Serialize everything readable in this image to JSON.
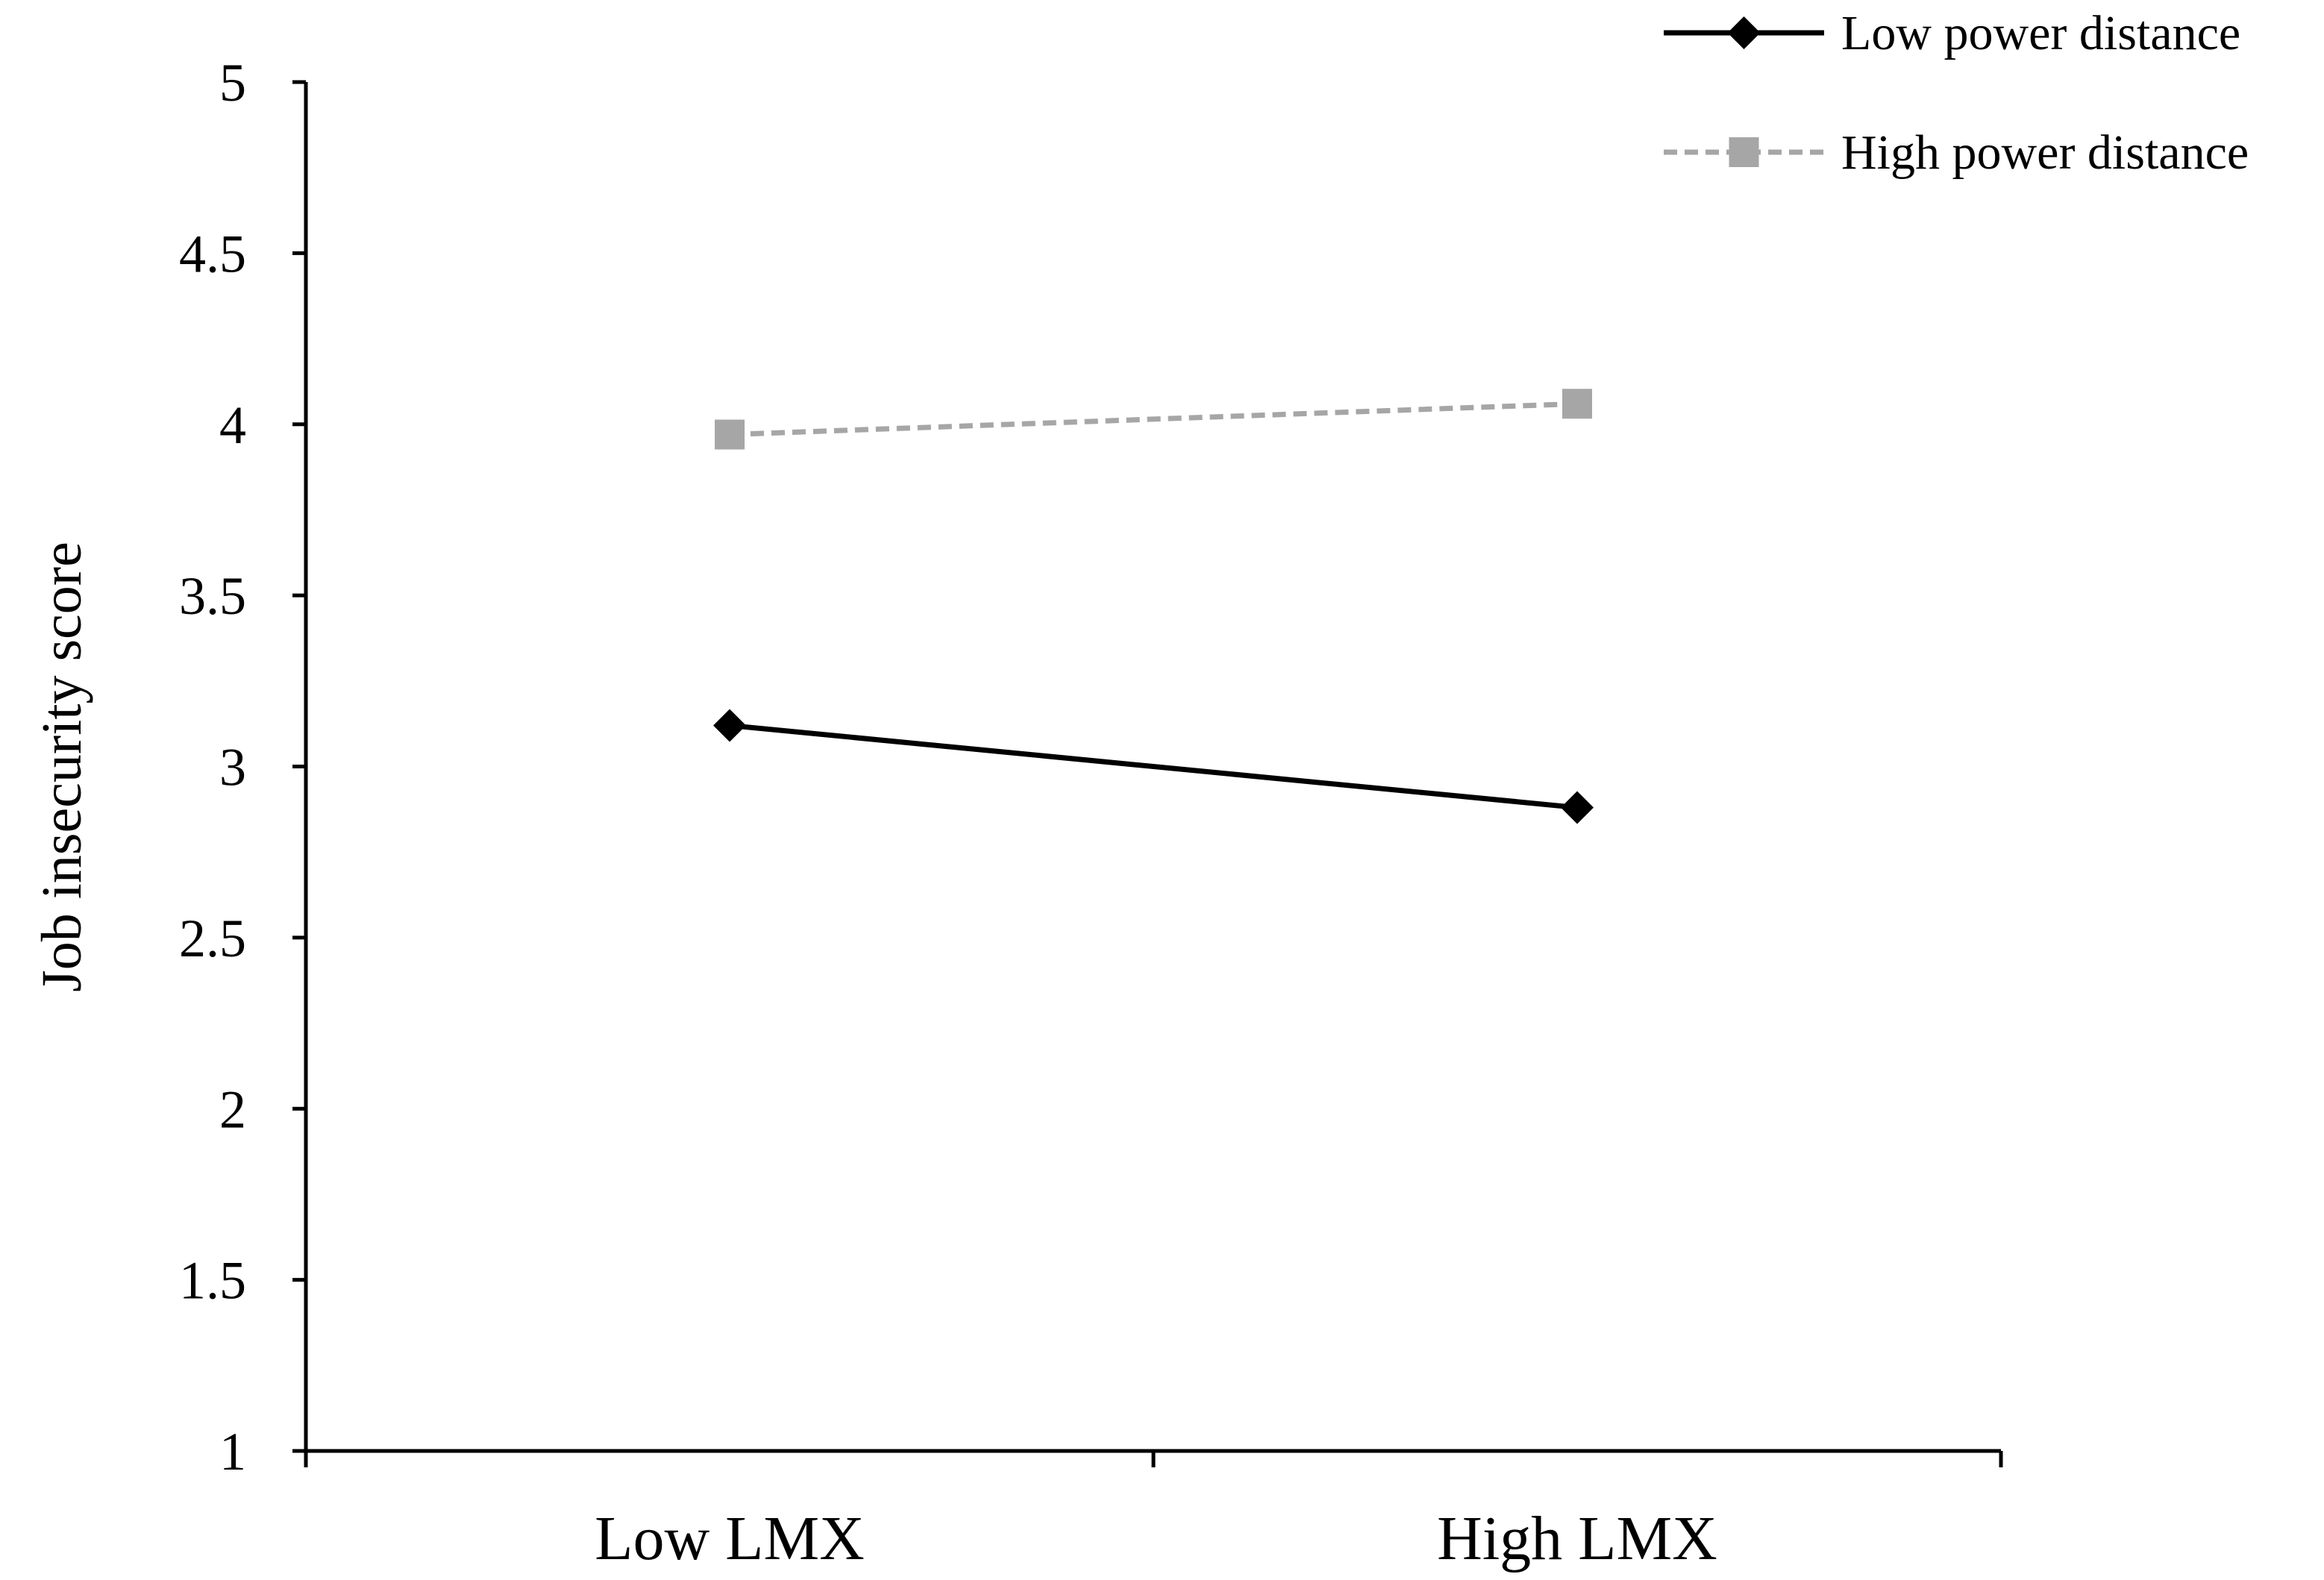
{
  "chart_data": {
    "type": "line",
    "title": "",
    "xlabel": "",
    "ylabel": "Job insecurity score",
    "categories": [
      "Low LMX",
      "High LMX"
    ],
    "ylim": [
      1,
      5
    ],
    "yticks": [
      "1",
      "1.5",
      "2",
      "2.5",
      "3",
      "3.5",
      "4",
      "4.5",
      "5"
    ],
    "grid": false,
    "legend_position": "top-right",
    "series": [
      {
        "name": "Low power distance",
        "values": [
          3.12,
          2.88
        ],
        "color": "#000000",
        "line_style": "solid",
        "marker": "diamond"
      },
      {
        "name": "High power distance",
        "values": [
          3.97,
          4.06
        ],
        "color": "#a6a6a6",
        "line_style": "dashed",
        "marker": "square"
      }
    ]
  }
}
